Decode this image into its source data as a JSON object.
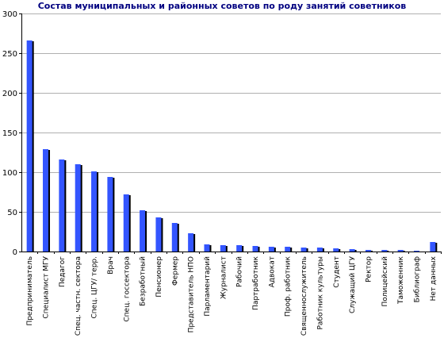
{
  "chart_data": {
    "type": "bar",
    "title": "Состав муниципальных и районных советов по роду занятий советников",
    "xlabel": "",
    "ylabel": "",
    "ylim": [
      0,
      300
    ],
    "yticks": [
      0,
      50,
      100,
      150,
      200,
      250,
      300
    ],
    "grid": true,
    "legend": "none",
    "bar_color": "#3355ff",
    "shadow_color": "#000000",
    "categories": [
      "Предприниматель",
      "Специалист МГУ",
      "Педагог",
      "Спец. частн. сектора",
      "Спец. ЦГУ/ терр.",
      "Врач",
      "Спец. госсектора",
      "Безработный",
      "Пенсионер",
      "Фермер",
      "Представитель НПО",
      "Парламентарий",
      "Журналист",
      "Рабочий",
      "Партработник",
      "Адвокат",
      "Проф. работник",
      "Священнослужитель",
      "Работник культуры",
      "Студент",
      "Служащий ЦГУ",
      "Ректор",
      "Полицейский",
      "Таможенник",
      "Библиограф",
      "Нет данных"
    ],
    "values": [
      266,
      129,
      116,
      110,
      101,
      94,
      72,
      52,
      43,
      36,
      23,
      9,
      8,
      8,
      7,
      6,
      6,
      5,
      5,
      4,
      3,
      2,
      2,
      2,
      1,
      12
    ]
  }
}
